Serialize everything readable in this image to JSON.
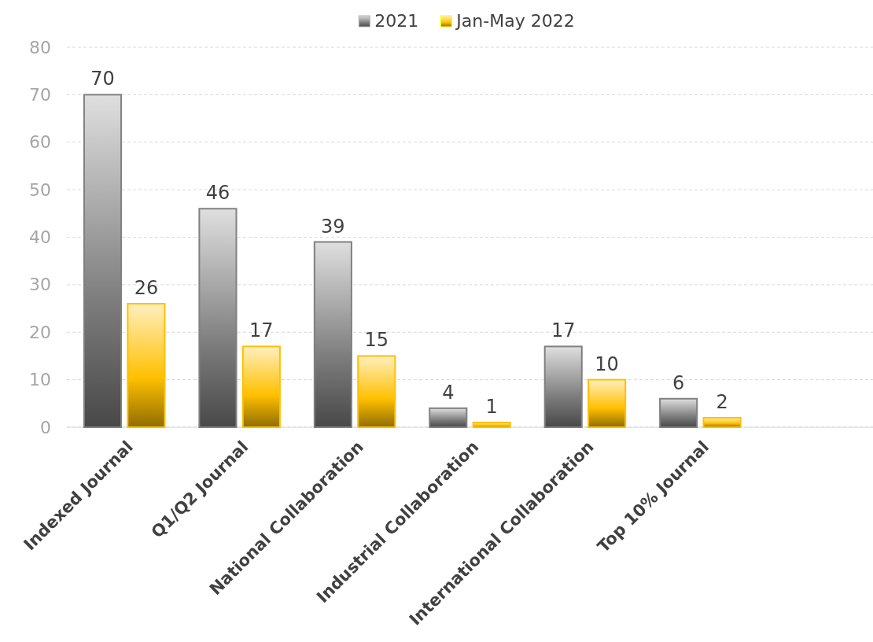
{
  "chart_data": {
    "type": "bar",
    "categories": [
      "Indexed Journal",
      "Q1/Q2 Journal",
      "National Collaboration",
      "Industrial Collaboration",
      "International Collaboration",
      "Top 10% Journal",
      null
    ],
    "series": [
      {
        "name": "2021",
        "color": "#808080",
        "values": [
          70,
          46,
          39,
          4,
          17,
          6,
          null
        ]
      },
      {
        "name": "Jan-May 2022",
        "color": "#ffc000",
        "values": [
          26,
          17,
          15,
          1,
          10,
          2,
          null
        ]
      }
    ],
    "ylim": [
      0,
      80
    ],
    "yticks": [
      0,
      10,
      20,
      30,
      40,
      50,
      60,
      70,
      80
    ],
    "grid": "y",
    "legend": "top",
    "data_labels": true
  }
}
